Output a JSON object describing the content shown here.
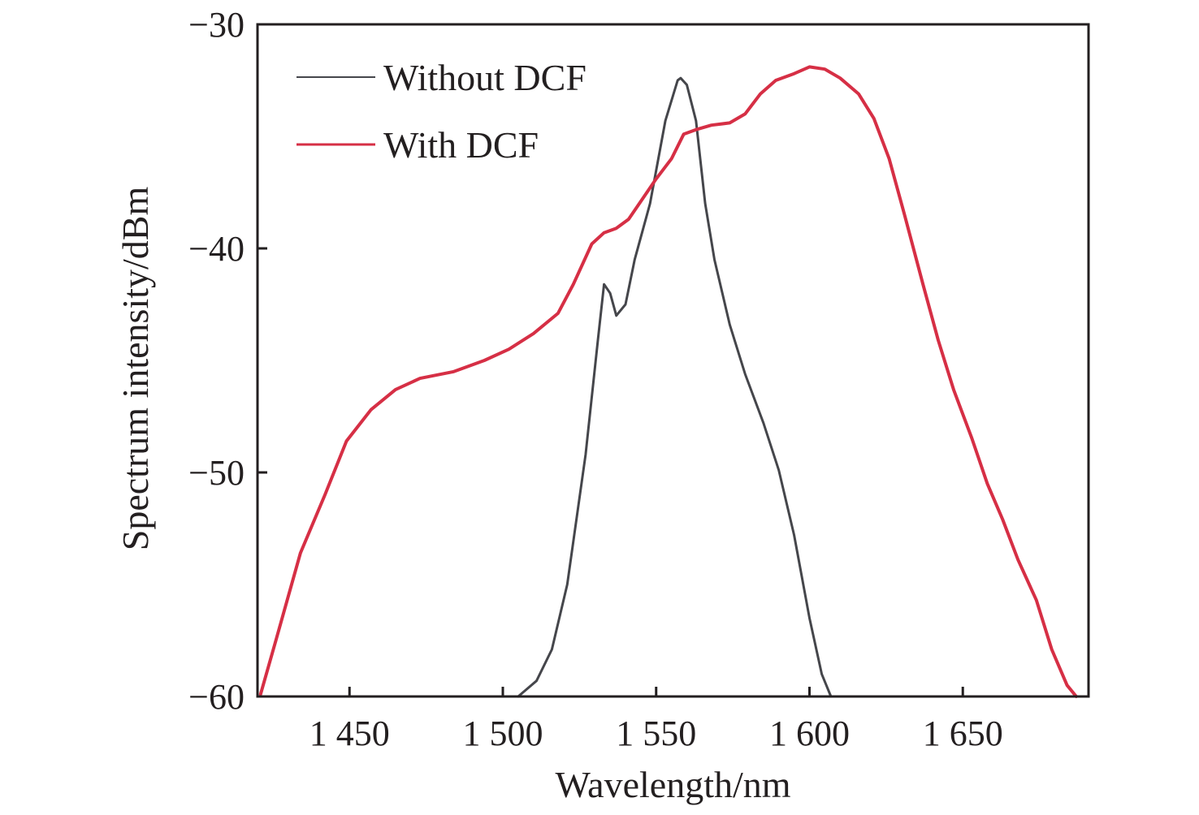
{
  "chart_data": {
    "type": "line",
    "title": "",
    "xlabel": "Wavelength/nm",
    "ylabel": "Spectrum intensity/dBm",
    "xlim": [
      1420,
      1691
    ],
    "ylim": [
      -60,
      -30
    ],
    "xticks": [
      1450,
      1500,
      1550,
      1600,
      1650
    ],
    "xtick_labels": [
      "1 450",
      "1 500",
      "1 550",
      "1 600",
      "1 650"
    ],
    "yticks": [
      -30,
      -40,
      -50,
      -60
    ],
    "ytick_labels": [
      "−30",
      "−40",
      "−50",
      "−60"
    ],
    "grid": false,
    "legend_position": "top-left",
    "series": [
      {
        "name": "Without DCF",
        "color": "#45464b",
        "x": [
          1505,
          1511,
          1516,
          1521,
          1527,
          1531,
          1533,
          1535,
          1537,
          1540,
          1543,
          1548,
          1553,
          1557,
          1558,
          1560,
          1563,
          1566,
          1569,
          1574,
          1579,
          1585,
          1590,
          1595,
          1600,
          1604,
          1607
        ],
        "y": [
          -60,
          -59.3,
          -57.9,
          -55.0,
          -49.2,
          -44.1,
          -41.6,
          -42.0,
          -43.0,
          -42.5,
          -40.5,
          -38.0,
          -34.3,
          -32.5,
          -32.4,
          -32.7,
          -34.3,
          -38.0,
          -40.5,
          -43.4,
          -45.6,
          -47.8,
          -49.9,
          -52.8,
          -56.5,
          -59.0,
          -60
        ]
      },
      {
        "name": "With DCF",
        "color": "#d62f45",
        "x": [
          1421,
          1426,
          1434,
          1442,
          1449,
          1457,
          1465,
          1473,
          1484,
          1494,
          1502,
          1510,
          1518,
          1523,
          1529,
          1533,
          1537,
          1541,
          1545,
          1550,
          1555,
          1559,
          1563,
          1568,
          1574,
          1579,
          1584,
          1589,
          1595,
          1600,
          1605,
          1610,
          1616,
          1621,
          1626,
          1631,
          1637,
          1642,
          1647,
          1653,
          1658,
          1663,
          1668,
          1674,
          1679,
          1684,
          1687
        ],
        "y": [
          -59.9,
          -57.5,
          -53.6,
          -51.0,
          -48.6,
          -47.2,
          -46.3,
          -45.8,
          -45.5,
          -45.0,
          -44.5,
          -43.8,
          -42.9,
          -41.6,
          -39.8,
          -39.3,
          -39.1,
          -38.7,
          -37.9,
          -36.9,
          -36.0,
          -34.9,
          -34.7,
          -34.5,
          -34.4,
          -34.0,
          -33.1,
          -32.5,
          -32.2,
          -31.9,
          -32.0,
          -32.4,
          -33.1,
          -34.2,
          -36.0,
          -38.5,
          -41.6,
          -44.1,
          -46.3,
          -48.5,
          -50.5,
          -52.1,
          -53.9,
          -55.7,
          -57.9,
          -59.5,
          -60
        ]
      }
    ]
  }
}
